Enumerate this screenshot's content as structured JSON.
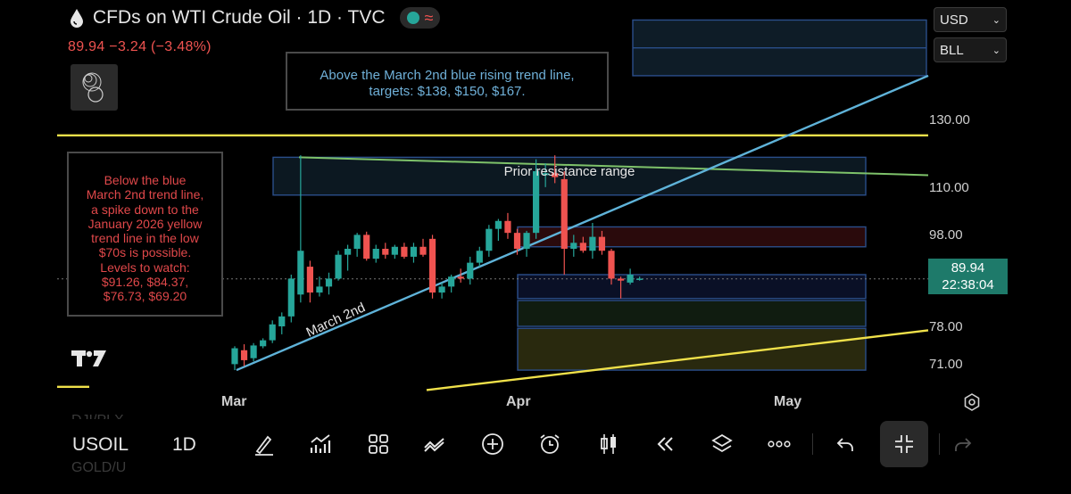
{
  "header": {
    "title": "CFDs on WTI Crude Oil · 1D · TVC",
    "price": "89.94",
    "change": "−3.24 (−3.48%)",
    "status_icon": "market-status-dot",
    "wave_icon": "≈"
  },
  "controls": {
    "currency": "USD",
    "unit": "BLL"
  },
  "annotations": {
    "top_note": [
      "Above the March 2nd blue rising trend line,",
      "targets: $138, $150, $167."
    ],
    "left_note": [
      "Below the blue",
      "March 2nd trend line,",
      "a spike down to the",
      "January 2026 yellow",
      "trend line in the low",
      "$70s is possible.",
      "Levels to watch:",
      "$91.26, $84.37,",
      "$76.73, $69.20"
    ],
    "resistance_label": "Prior resistance range",
    "trendline_label": "March 2nd"
  },
  "axis": {
    "price_labels": [
      "130.00",
      "110.00",
      "98.00",
      "78.00",
      "71.00"
    ],
    "current_price": "89.94",
    "countdown": "22:38:04",
    "months": [
      "Mar",
      "Apr",
      "May"
    ]
  },
  "toolbar": {
    "symbol": "USOIL",
    "interval": "1D",
    "ghost_symbols": [
      "DJI/PLX",
      "GOLD/U"
    ]
  },
  "colors": {
    "up": "#26a69a",
    "down": "#ef5350",
    "trend_blue": "#5fb3d9",
    "trend_yellow": "#f0e14a",
    "trend_green": "#7ec26a",
    "price_tag": "#1e7a6a"
  },
  "chart_data": {
    "type": "candlestick",
    "title": "CFDs on WTI Crude Oil · 1D · TVC",
    "x_labels": [
      "Mar",
      "Apr",
      "May"
    ],
    "y_ticks": [
      130.0,
      110.0,
      98.0,
      78.0,
      71.0
    ],
    "last_price": 89.94,
    "candles": [
      {
        "o": 68.5,
        "h": 73.0,
        "l": 67.0,
        "c": 72.5
      },
      {
        "o": 72.0,
        "h": 73.5,
        "l": 68.0,
        "c": 69.5
      },
      {
        "o": 70.0,
        "h": 73.8,
        "l": 69.2,
        "c": 73.2
      },
      {
        "o": 73.0,
        "h": 75.0,
        "l": 72.5,
        "c": 74.5
      },
      {
        "o": 74.5,
        "h": 79.5,
        "l": 73.8,
        "c": 78.5
      },
      {
        "o": 78.0,
        "h": 81.5,
        "l": 76.0,
        "c": 80.5
      },
      {
        "o": 80.5,
        "h": 91.0,
        "l": 79.0,
        "c": 90.0
      },
      {
        "o": 86.0,
        "h": 121.0,
        "l": 84.0,
        "c": 97.0
      },
      {
        "o": 93.0,
        "h": 94.5,
        "l": 84.0,
        "c": 86.5
      },
      {
        "o": 86.5,
        "h": 90.5,
        "l": 85.5,
        "c": 88.0
      },
      {
        "o": 88.0,
        "h": 91.5,
        "l": 86.0,
        "c": 90.0
      },
      {
        "o": 90.0,
        "h": 97.0,
        "l": 89.5,
        "c": 96.0
      },
      {
        "o": 96.0,
        "h": 98.5,
        "l": 92.0,
        "c": 97.5
      },
      {
        "o": 97.5,
        "h": 101.5,
        "l": 95.5,
        "c": 101.0
      },
      {
        "o": 101.0,
        "h": 101.8,
        "l": 94.5,
        "c": 95.0
      },
      {
        "o": 95.0,
        "h": 98.5,
        "l": 94.0,
        "c": 97.5
      },
      {
        "o": 97.5,
        "h": 99.0,
        "l": 95.0,
        "c": 96.0
      },
      {
        "o": 96.0,
        "h": 98.5,
        "l": 95.0,
        "c": 98.0
      },
      {
        "o": 98.0,
        "h": 99.0,
        "l": 95.0,
        "c": 95.5
      },
      {
        "o": 95.5,
        "h": 99.0,
        "l": 94.0,
        "c": 98.0
      },
      {
        "o": 98.0,
        "h": 100.0,
        "l": 95.5,
        "c": 96.0
      },
      {
        "o": 100.0,
        "h": 101.0,
        "l": 85.0,
        "c": 86.5
      },
      {
        "o": 86.5,
        "h": 89.0,
        "l": 85.0,
        "c": 88.0
      },
      {
        "o": 88.0,
        "h": 91.0,
        "l": 86.5,
        "c": 90.5
      },
      {
        "o": 90.5,
        "h": 92.5,
        "l": 89.0,
        "c": 90.0
      },
      {
        "o": 90.0,
        "h": 95.5,
        "l": 88.5,
        "c": 94.0
      },
      {
        "o": 94.0,
        "h": 98.0,
        "l": 93.0,
        "c": 97.0
      },
      {
        "o": 97.0,
        "h": 103.5,
        "l": 95.5,
        "c": 102.5
      },
      {
        "o": 102.5,
        "h": 105.0,
        "l": 99.5,
        "c": 104.5
      },
      {
        "o": 104.5,
        "h": 106.5,
        "l": 100.0,
        "c": 101.5
      },
      {
        "o": 101.5,
        "h": 102.5,
        "l": 96.0,
        "c": 97.5
      },
      {
        "o": 97.5,
        "h": 102.0,
        "l": 95.5,
        "c": 101.5
      },
      {
        "o": 101.5,
        "h": 120.0,
        "l": 100.0,
        "c": 117.0
      },
      {
        "o": 116.0,
        "h": 119.0,
        "l": 113.0,
        "c": 116.5
      },
      {
        "o": 116.5,
        "h": 121.0,
        "l": 114.0,
        "c": 115.5
      },
      {
        "o": 115.0,
        "h": 117.0,
        "l": 91.0,
        "c": 97.5
      },
      {
        "o": 97.5,
        "h": 101.0,
        "l": 95.5,
        "c": 99.0
      },
      {
        "o": 99.0,
        "h": 100.5,
        "l": 96.5,
        "c": 97.0
      },
      {
        "o": 97.0,
        "h": 104.0,
        "l": 95.0,
        "c": 100.5
      },
      {
        "o": 100.5,
        "h": 102.0,
        "l": 96.0,
        "c": 97.0
      },
      {
        "o": 97.0,
        "h": 97.5,
        "l": 88.5,
        "c": 90.0
      },
      {
        "o": 90.0,
        "h": 90.5,
        "l": 85.0,
        "c": 89.5
      },
      {
        "o": 89.0,
        "h": 92.5,
        "l": 88.5,
        "c": 91.0
      },
      {
        "o": 90.0,
        "h": 90.5,
        "l": 89.5,
        "c": 90.0
      }
    ],
    "lines": [
      {
        "name": "March 2nd",
        "color": "#5fb3d9",
        "from": {
          "bar": 0,
          "price": 67.0
        },
        "to": {
          "bar": "May+",
          "price": 141.0
        }
      },
      {
        "name": "January 2026",
        "color": "#f0e14a",
        "from": {
          "bar": 0,
          "price": 62.0
        },
        "to": {
          "bar": "May+",
          "price": 77.0
        }
      },
      {
        "name": "horizontal",
        "color": "#f0e14a",
        "price": 126.0
      },
      {
        "name": "resistance",
        "color": "#7ec26a",
        "from": {
          "bar": 7,
          "price": 120.5
        },
        "to": {
          "bar": "May+",
          "price": 116.0
        }
      }
    ],
    "zones": [
      {
        "label": "Prior resistance range",
        "low": 111.0,
        "high": 120.5
      },
      {
        "low": 98.0,
        "high": 103.0,
        "color": "red"
      },
      {
        "low": 85.0,
        "high": 91.0,
        "color": "blue"
      },
      {
        "low": 78.0,
        "high": 84.5,
        "color": "green"
      },
      {
        "low": 67.0,
        "high": 77.5,
        "color": "yellow"
      },
      {
        "low": 141.0,
        "high": 155.0,
        "color": "target"
      }
    ]
  }
}
